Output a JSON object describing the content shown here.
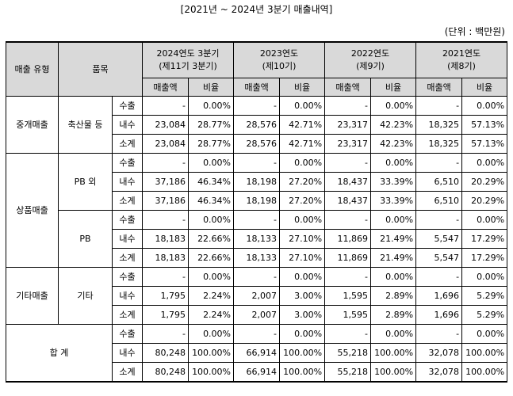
{
  "title": "[2021년 ~ 2024년 3분기 매출내역]",
  "unit": "(단위 : 백만원)",
  "header": {
    "sales_type": "매출 유형",
    "item": "품목",
    "periods": [
      {
        "line1": "2024연도 3분기",
        "line2": "(제11기 3분기)"
      },
      {
        "line1": "2023연도",
        "line2": "(제10기)"
      },
      {
        "line1": "2022연도",
        "line2": "(제9기)"
      },
      {
        "line1": "2021연도",
        "line2": "(제8기)"
      }
    ],
    "amount": "매출액",
    "ratio": "비율"
  },
  "groups": [
    {
      "type": "중개매출",
      "item": "축산물 등",
      "rows": [
        {
          "kind": "수출",
          "vals": [
            "-",
            "0.00%",
            "-",
            "0.00%",
            "-",
            "0.00%",
            "-",
            "0.00%"
          ]
        },
        {
          "kind": "내수",
          "vals": [
            "23,084",
            "28.77%",
            "28,576",
            "42.71%",
            "23,317",
            "42.23%",
            "18,325",
            "57.13%"
          ]
        },
        {
          "kind": "소계",
          "vals": [
            "23,084",
            "28.77%",
            "28,576",
            "42.71%",
            "23,317",
            "42.23%",
            "18,325",
            "57.13%"
          ]
        }
      ]
    },
    {
      "type": "상품매출",
      "item": "PB 외",
      "rows": [
        {
          "kind": "수출",
          "vals": [
            "-",
            "0.00%",
            "-",
            "0.00%",
            "-",
            "0.00%",
            "-",
            "0.00%"
          ]
        },
        {
          "kind": "내수",
          "vals": [
            "37,186",
            "46.34%",
            "18,198",
            "27.20%",
            "18,437",
            "33.39%",
            "6,510",
            "20.29%"
          ]
        },
        {
          "kind": "소계",
          "vals": [
            "37,186",
            "46.34%",
            "18,198",
            "27.20%",
            "18,437",
            "33.39%",
            "6,510",
            "20.29%"
          ]
        }
      ]
    },
    {
      "type": "",
      "item": "PB",
      "rows": [
        {
          "kind": "수출",
          "vals": [
            "-",
            "0.00%",
            "-",
            "0.00%",
            "-",
            "0.00%",
            "-",
            "0.00%"
          ]
        },
        {
          "kind": "내수",
          "vals": [
            "18,183",
            "22.66%",
            "18,133",
            "27.10%",
            "11,869",
            "21.49%",
            "5,547",
            "17.29%"
          ]
        },
        {
          "kind": "소계",
          "vals": [
            "18,183",
            "22.66%",
            "18,133",
            "27.10%",
            "11,869",
            "21.49%",
            "5,547",
            "17.29%"
          ]
        }
      ]
    },
    {
      "type": "기타매출",
      "item": "기타",
      "rows": [
        {
          "kind": "수출",
          "vals": [
            "-",
            "0.00%",
            "-",
            "0.00%",
            "-",
            "0.00%",
            "-",
            "0.00%"
          ]
        },
        {
          "kind": "내수",
          "vals": [
            "1,795",
            "2.24%",
            "2,007",
            "3.00%",
            "1,595",
            "2.89%",
            "1,696",
            "5.29%"
          ]
        },
        {
          "kind": "소계",
          "vals": [
            "1,795",
            "2.24%",
            "2,007",
            "3.00%",
            "1,595",
            "2.89%",
            "1,696",
            "5.29%"
          ]
        }
      ]
    },
    {
      "type": "합 계",
      "item": "",
      "rows": [
        {
          "kind": "수출",
          "vals": [
            "-",
            "0.00%",
            "-",
            "0.00%",
            "-",
            "0.00%",
            "-",
            "0.00%"
          ]
        },
        {
          "kind": "내수",
          "vals": [
            "80,248",
            "100.00%",
            "66,914",
            "100.00%",
            "55,218",
            "100.00%",
            "32,078",
            "100.00%"
          ]
        },
        {
          "kind": "소계",
          "vals": [
            "80,248",
            "100.00%",
            "66,914",
            "100.00%",
            "55,218",
            "100.00%",
            "32,078",
            "100.00%"
          ]
        }
      ]
    }
  ]
}
